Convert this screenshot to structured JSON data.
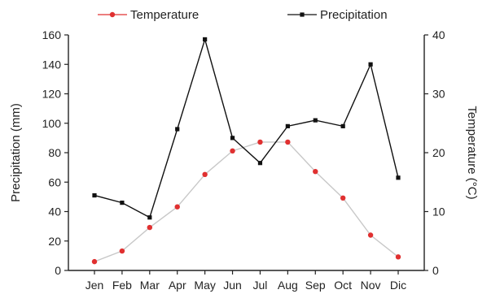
{
  "chart_data": {
    "type": "line",
    "categories": [
      "Jen",
      "Feb",
      "Mar",
      "Apr",
      "May",
      "Jun",
      "Jul",
      "Aug",
      "Sep",
      "Oct",
      "Nov",
      "Dic"
    ],
    "series": [
      {
        "name": "Temperature",
        "axis": "right",
        "color": "#e03030",
        "line_color": "#c8c8c8",
        "marker": "circle",
        "values": [
          1.5,
          3.3,
          7.3,
          10.8,
          16.3,
          20.3,
          21.8,
          21.8,
          16.8,
          12.3,
          6.0,
          2.3
        ]
      },
      {
        "name": "Precipitation",
        "axis": "left",
        "color": "#111111",
        "line_color": "#111111",
        "marker": "square",
        "values": [
          51,
          46,
          36,
          96,
          157,
          90,
          73,
          98,
          102,
          98,
          140,
          63
        ]
      }
    ],
    "ylabel": "Precipitation (mm)",
    "ylim": [
      0,
      160
    ],
    "yticks": [
      0,
      20,
      40,
      60,
      80,
      100,
      120,
      140,
      160
    ],
    "y2label": "Temperature (°C)",
    "y2lim": [
      0,
      40
    ],
    "y2ticks": [
      0,
      10,
      20,
      30,
      40
    ],
    "legend_position": "top",
    "grid": false
  }
}
